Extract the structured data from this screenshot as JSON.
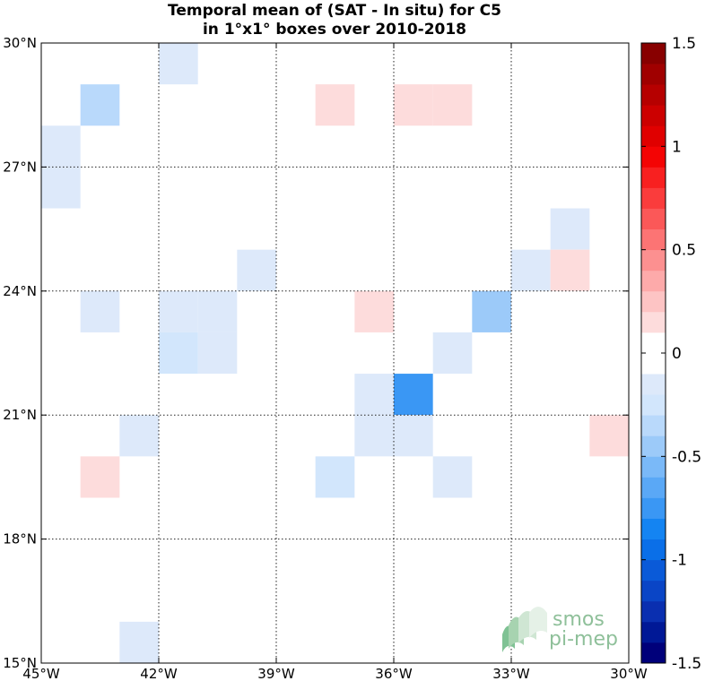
{
  "chart_data": {
    "type": "heatmap",
    "title": [
      "Temporal mean of (SAT - In situ) for C5",
      "in 1°x1° boxes over 2010-2018"
    ],
    "xlim": [
      -45,
      -30
    ],
    "ylim": [
      15,
      30
    ],
    "x_ticks": [
      {
        "value": -45,
        "label": "45°W"
      },
      {
        "value": -42,
        "label": "42°W"
      },
      {
        "value": -39,
        "label": "39°W"
      },
      {
        "value": -36,
        "label": "36°W"
      },
      {
        "value": -33,
        "label": "33°W"
      },
      {
        "value": -30,
        "label": "30°W"
      }
    ],
    "y_ticks": [
      {
        "value": 15,
        "label": "15°N"
      },
      {
        "value": 18,
        "label": "18°N"
      },
      {
        "value": 21,
        "label": "21°N"
      },
      {
        "value": 24,
        "label": "24°N"
      },
      {
        "value": 27,
        "label": "27°N"
      },
      {
        "value": 30,
        "label": "30°N"
      }
    ],
    "grid": true,
    "cells": [
      {
        "lon": -42,
        "lat": 29,
        "value": -0.15
      },
      {
        "lon": -44,
        "lat": 28,
        "value": -0.35
      },
      {
        "lon": -38,
        "lat": 28,
        "value": 0.15
      },
      {
        "lon": -36,
        "lat": 28,
        "value": 0.15
      },
      {
        "lon": -35,
        "lat": 28,
        "value": 0.15
      },
      {
        "lon": -45,
        "lat": 27,
        "value": -0.15
      },
      {
        "lon": -45,
        "lat": 26,
        "value": -0.15
      },
      {
        "lon": -32,
        "lat": 25,
        "value": -0.15
      },
      {
        "lon": -40,
        "lat": 24,
        "value": -0.15
      },
      {
        "lon": -33,
        "lat": 24,
        "value": -0.15
      },
      {
        "lon": -32,
        "lat": 24,
        "value": 0.15
      },
      {
        "lon": -44,
        "lat": 23,
        "value": -0.15
      },
      {
        "lon": -42,
        "lat": 23,
        "value": -0.15
      },
      {
        "lon": -41,
        "lat": 23,
        "value": -0.15
      },
      {
        "lon": -37,
        "lat": 23,
        "value": 0.15
      },
      {
        "lon": -34,
        "lat": 23,
        "value": -0.5
      },
      {
        "lon": -42,
        "lat": 22,
        "value": -0.25
      },
      {
        "lon": -41,
        "lat": 22,
        "value": -0.15
      },
      {
        "lon": -35,
        "lat": 22,
        "value": -0.15
      },
      {
        "lon": -37,
        "lat": 21,
        "value": -0.15
      },
      {
        "lon": -36,
        "lat": 21,
        "value": -0.75
      },
      {
        "lon": -43,
        "lat": 20,
        "value": -0.15
      },
      {
        "lon": -37,
        "lat": 20,
        "value": -0.15
      },
      {
        "lon": -36,
        "lat": 20,
        "value": -0.15
      },
      {
        "lon": -31,
        "lat": 20,
        "value": 0.15
      },
      {
        "lon": -44,
        "lat": 19,
        "value": 0.15
      },
      {
        "lon": -38,
        "lat": 19,
        "value": -0.25
      },
      {
        "lon": -35,
        "lat": 19,
        "value": -0.15
      },
      {
        "lon": -43,
        "lat": 15,
        "value": -0.15
      }
    ],
    "colorbar": {
      "range": [
        -1.5,
        1.5
      ],
      "step": 0.1,
      "zero_band_color": "#ffffff",
      "ticks": [
        {
          "value": 1.5,
          "label": "1.5"
        },
        {
          "value": 1.0,
          "label": "1"
        },
        {
          "value": 0.5,
          "label": "0.5"
        },
        {
          "value": 0.0,
          "label": "0"
        },
        {
          "value": -0.5,
          "label": "-0.5"
        },
        {
          "value": -1.0,
          "label": "-1"
        },
        {
          "value": -1.5,
          "label": "-1.5"
        }
      ],
      "colors_low_to_high": [
        "#00007a",
        "#001896",
        "#0a2fb0",
        "#0a45c6",
        "#0a5ad8",
        "#0a6fe8",
        "#1484f2",
        "#3a97f4",
        "#5aa8f6",
        "#7ab9f8",
        "#9ccaf9",
        "#b9d9fb",
        "#d2e6fc",
        "#dde9fa",
        "#ffffff",
        "#ffffff",
        "#fddcdc",
        "#fdc4c4",
        "#fdaaaa",
        "#fc9090",
        "#fc7474",
        "#fb5858",
        "#fa3c3c",
        "#f82020",
        "#f40404",
        "#e00000",
        "#cc0000",
        "#b60000",
        "#a00000",
        "#880000"
      ]
    },
    "logo": {
      "line1": "smos",
      "line2": "pi-mep"
    }
  }
}
